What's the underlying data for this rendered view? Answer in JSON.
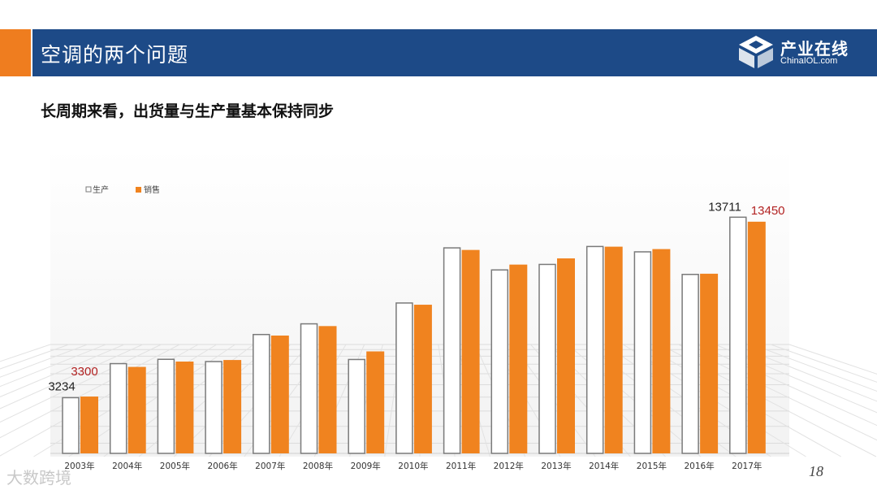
{
  "header": {
    "title": "空调的两个问题",
    "logo_name": "产业在线",
    "logo_url": "ChinaIOL.com"
  },
  "subtitle": "长周期来看，出货量与生产量基本保持同步",
  "page_number": "18",
  "watermark": "大数跨境",
  "colors": {
    "title_bar": "#1d4a87",
    "accent": "#ef7d1f",
    "production_outline": "#7a7a7a",
    "sales_fill": "#f0831f",
    "highlight_label": "#b22222"
  },
  "chart_data": {
    "type": "bar",
    "categories": [
      "2003年",
      "2004年",
      "2005年",
      "2006年",
      "2007年",
      "2008年",
      "2009年",
      "2010年",
      "2011年",
      "2012年",
      "2013年",
      "2014年",
      "2015年",
      "2016年",
      "2017年"
    ],
    "series": [
      {
        "name": "生产",
        "values": [
          3234,
          5210,
          5460,
          5330,
          6900,
          7520,
          5450,
          8730,
          11930,
          10650,
          10970,
          12010,
          11700,
          10390,
          13711
        ]
      },
      {
        "name": "销售",
        "values": [
          3300,
          5020,
          5330,
          5420,
          6840,
          7390,
          5920,
          8630,
          11810,
          10960,
          11320,
          12000,
          11860,
          10430,
          13450
        ]
      }
    ],
    "data_labels": [
      {
        "series": "生产",
        "category": "2003年",
        "text": "3234"
      },
      {
        "series": "销售",
        "category": "2003年",
        "text": "3300"
      },
      {
        "series": "生产",
        "category": "2017年",
        "text": "13711"
      },
      {
        "series": "销售",
        "category": "2017年",
        "text": "13450"
      }
    ],
    "ylim": [
      0,
      15000
    ],
    "legend_position": "top-left",
    "grid": false
  }
}
